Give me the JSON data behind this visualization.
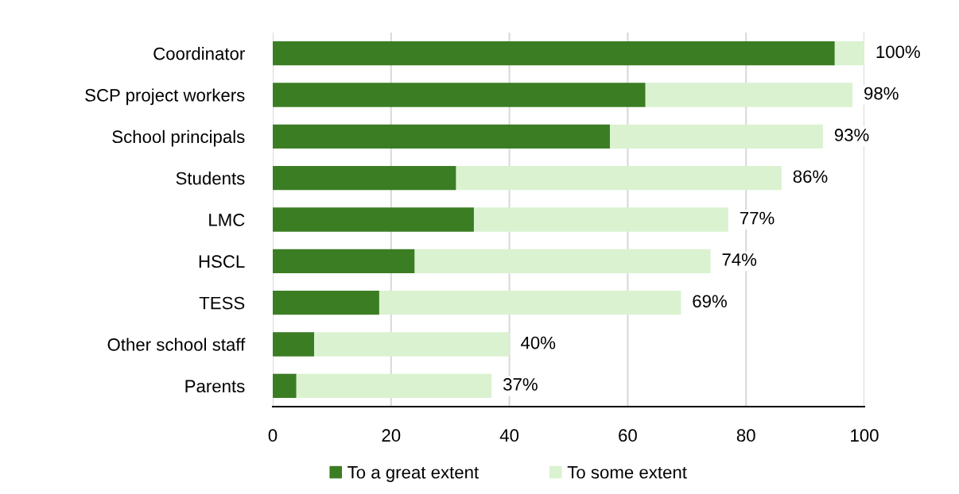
{
  "chart_data": {
    "type": "bar",
    "orientation": "horizontal",
    "stacked": true,
    "categories": [
      "Coordinator",
      "SCP project workers",
      "School principals",
      "Students",
      "LMC",
      "HSCL",
      "TESS",
      "Other school staff",
      "Parents"
    ],
    "series": [
      {
        "name": "To a great extent",
        "color": "#3b7d23",
        "values": [
          95,
          63,
          57,
          31,
          34,
          24,
          18,
          7,
          4
        ]
      },
      {
        "name": "To some extent",
        "color": "#daf2d0",
        "values": [
          5,
          35,
          36,
          55,
          43,
          50,
          51,
          33,
          33
        ]
      }
    ],
    "totals": [
      "100%",
      "98%",
      "93%",
      "86%",
      "77%",
      "74%",
      "69%",
      "40%",
      "37%"
    ],
    "xlim": [
      0,
      100
    ],
    "xticks": [
      0,
      20,
      40,
      60,
      80,
      100
    ],
    "grid": "x",
    "legend": "bottom"
  }
}
